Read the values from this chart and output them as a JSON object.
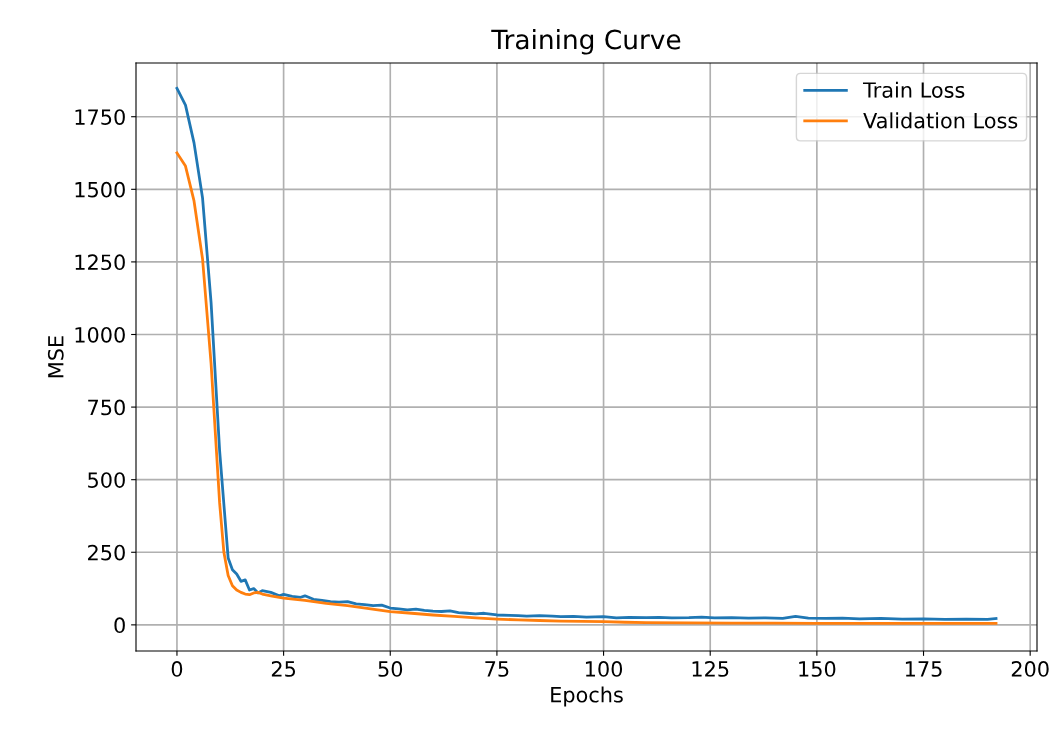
{
  "chart_data": {
    "type": "line",
    "title": "Training Curve",
    "xlabel": "Epochs",
    "ylabel": "MSE",
    "xlim": [
      -9.6,
      201.6
    ],
    "xticks": [
      0,
      25,
      50,
      75,
      100,
      125,
      150,
      175,
      200
    ],
    "ylim": [
      -90,
      1935
    ],
    "yticks": [
      0,
      250,
      500,
      750,
      1000,
      1250,
      1500,
      1750
    ],
    "grid": true,
    "legend": "top right",
    "series": [
      {
        "name": "Train Loss",
        "color": "#1f77b4",
        "x": [
          0,
          2,
          4,
          6,
          8,
          10,
          12,
          13,
          14,
          15,
          16,
          17,
          18,
          19,
          20,
          22,
          24,
          25,
          27,
          29,
          30,
          32,
          34,
          36,
          38,
          40,
          42,
          44,
          46,
          48,
          50,
          52,
          54,
          56,
          58,
          60,
          62,
          64,
          66,
          68,
          70,
          72,
          75,
          78,
          80,
          82,
          85,
          88,
          90,
          93,
          96,
          100,
          103,
          106,
          110,
          113,
          116,
          120,
          123,
          126,
          130,
          134,
          138,
          142,
          145,
          148,
          152,
          156,
          160,
          165,
          170,
          175,
          180,
          185,
          190,
          192
        ],
        "values": [
          1848,
          1790,
          1660,
          1470,
          1110,
          600,
          230,
          190,
          175,
          150,
          155,
          120,
          125,
          110,
          118,
          112,
          100,
          105,
          98,
          95,
          100,
          88,
          84,
          80,
          78,
          80,
          72,
          70,
          66,
          68,
          58,
          55,
          52,
          54,
          50,
          47,
          46,
          48,
          42,
          40,
          38,
          40,
          34,
          33,
          32,
          30,
          32,
          30,
          28,
          29,
          27,
          28,
          24,
          26,
          25,
          26,
          24,
          25,
          27,
          24,
          25,
          23,
          24,
          22,
          29,
          23,
          22,
          23,
          21,
          22,
          20,
          21,
          19,
          20,
          19,
          22
        ]
      },
      {
        "name": "Validation Loss",
        "color": "#ff7f0e",
        "x": [
          0,
          2,
          4,
          6,
          8,
          10,
          11,
          12,
          13,
          14,
          15,
          16,
          17,
          18,
          19,
          20,
          22,
          25,
          30,
          35,
          40,
          45,
          50,
          55,
          60,
          65,
          70,
          75,
          80,
          85,
          90,
          95,
          100,
          105,
          110,
          120,
          130,
          140,
          150,
          160,
          170,
          180,
          192
        ],
        "values": [
          1625,
          1580,
          1460,
          1260,
          900,
          420,
          250,
          170,
          135,
          120,
          112,
          106,
          104,
          110,
          112,
          106,
          100,
          92,
          84,
          74,
          66,
          56,
          46,
          40,
          34,
          29,
          24,
          20,
          17,
          15,
          13,
          12,
          11,
          9,
          8,
          7,
          6,
          6,
          5,
          5,
          5,
          5,
          5
        ]
      }
    ]
  }
}
